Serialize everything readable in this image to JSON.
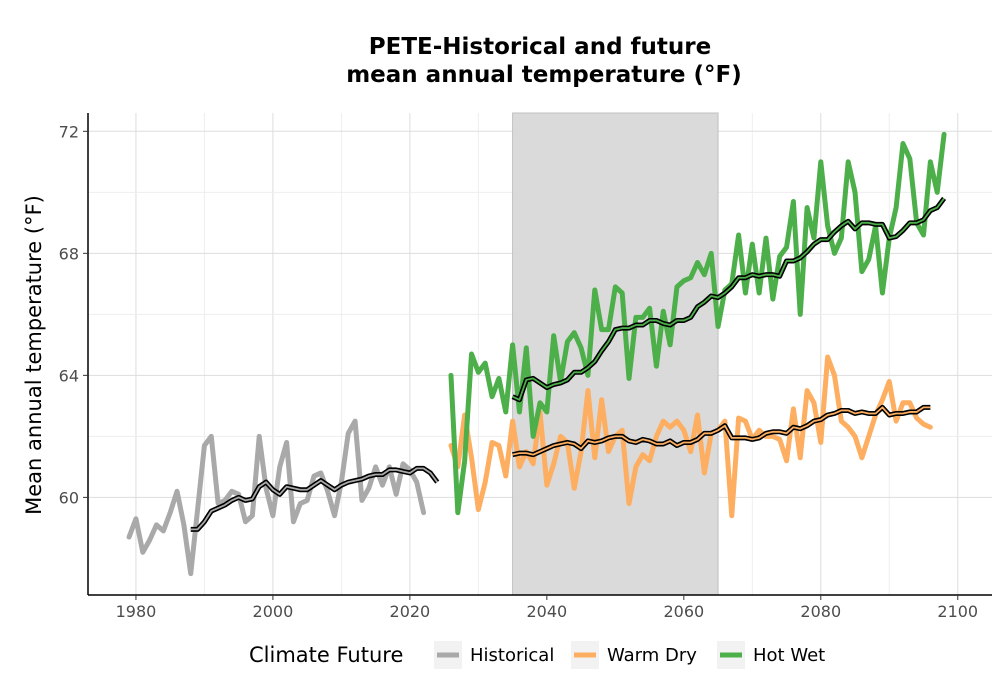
{
  "chart_data": {
    "type": "line",
    "title_line1": "PETE-Historical and future",
    "title_line2": "mean annual temperature (°F)",
    "xlabel": "",
    "ylabel": "Mean annual temperature (°F)",
    "xlim": [
      1973,
      2105
    ],
    "ylim": [
      56.8,
      72.6
    ],
    "x_ticks": [
      1980,
      2000,
      2020,
      2040,
      2060,
      2080,
      2100
    ],
    "y_ticks": [
      60,
      64,
      68,
      72
    ],
    "grid": true,
    "shaded_period": [
      2035,
      2065
    ],
    "legend": {
      "title": "Climate Future",
      "position": "bottom"
    },
    "series": [
      {
        "name": "Historical",
        "color": "#a9a9a9",
        "x_start": 1979,
        "values": [
          58.7,
          59.3,
          58.2,
          58.6,
          59.1,
          58.9,
          59.5,
          60.2,
          59.1,
          57.5,
          59.6,
          61.7,
          62.0,
          59.8,
          59.9,
          60.2,
          60.1,
          59.2,
          59.4,
          62.0,
          60.3,
          59.4,
          61.0,
          61.8,
          59.2,
          59.8,
          59.9,
          60.7,
          60.8,
          60.2,
          59.4,
          60.5,
          62.1,
          62.5,
          59.9,
          60.3,
          61.0,
          60.4,
          61.0,
          60.1,
          61.1,
          60.9,
          60.5,
          59.5
        ]
      },
      {
        "name": "Warm Dry",
        "color": "#fdae61",
        "x_start": 2026,
        "values": [
          61.7,
          61.0,
          62.7,
          61.3,
          59.6,
          60.5,
          61.8,
          61.7,
          60.7,
          62.5,
          61.0,
          61.5,
          61.1,
          62.8,
          60.4,
          61.1,
          62.0,
          61.8,
          60.3,
          61.5,
          63.5,
          61.3,
          63.2,
          61.5,
          62.0,
          62.2,
          59.8,
          61.0,
          61.4,
          61.2,
          62.0,
          62.5,
          62.3,
          62.5,
          62.2,
          61.5,
          62.7,
          60.8,
          62.1,
          62.2,
          62.5,
          59.4,
          62.6,
          62.5,
          61.9,
          62.2,
          62.0,
          62.0,
          61.9,
          61.2,
          62.9,
          61.3,
          63.5,
          63.1,
          61.8,
          64.6,
          64.0,
          62.5,
          62.3,
          62.0,
          61.3,
          62.0,
          62.7,
          63.2,
          63.8,
          62.5,
          63.1,
          63.1,
          62.6,
          62.4,
          62.3
        ]
      },
      {
        "name": "Hot Wet",
        "color": "#4daf4a",
        "x_start": 2026,
        "values": [
          64.0,
          59.5,
          61.2,
          64.7,
          64.1,
          64.4,
          63.3,
          63.9,
          62.8,
          65.0,
          62.8,
          64.9,
          62.0,
          63.1,
          62.8,
          65.3,
          63.8,
          65.1,
          65.4,
          64.9,
          64.0,
          66.8,
          65.5,
          65.5,
          66.9,
          66.7,
          63.9,
          65.9,
          65.9,
          66.2,
          64.3,
          66.1,
          65.0,
          66.9,
          67.1,
          67.2,
          67.7,
          67.3,
          68.0,
          65.6,
          66.8,
          67.0,
          68.6,
          66.7,
          68.3,
          66.7,
          68.5,
          66.5,
          67.9,
          68.2,
          69.7,
          66.0,
          69.5,
          68.5,
          71.0,
          68.9,
          68.0,
          68.5,
          71.0,
          70.0,
          67.4,
          67.8,
          68.9,
          66.7,
          68.5,
          69.5,
          71.6,
          71.1,
          69.0,
          68.6,
          71.0,
          70.0,
          71.9
        ]
      }
    ],
    "rolling_mean": {
      "name": "",
      "color": "#000000",
      "segments": [
        {
          "x_start": 1988,
          "values": [
            58.95,
            58.95,
            59.2,
            59.55,
            59.65,
            59.75,
            59.9,
            60.0,
            59.9,
            59.95,
            60.35,
            60.5,
            60.25,
            60.1,
            60.35,
            60.3,
            60.25,
            60.25,
            60.4,
            60.55,
            60.4,
            60.25,
            60.4,
            60.5,
            60.55,
            60.6,
            60.7,
            60.75,
            60.75,
            60.9,
            60.9,
            60.85,
            60.8,
            60.95,
            60.95,
            60.8,
            60.5
          ]
        },
        {
          "x_start": 2035,
          "values": [
            63.3,
            63.2,
            63.85,
            63.9,
            63.75,
            63.6,
            63.7,
            63.75,
            63.85,
            64.1,
            64.1,
            64.25,
            64.45,
            64.8,
            65.1,
            65.5,
            65.55,
            65.55,
            65.65,
            65.65,
            65.8,
            65.8,
            65.7,
            65.65,
            65.8,
            65.8,
            65.9,
            66.25,
            66.4,
            66.6,
            66.55,
            66.7,
            66.9,
            67.2,
            67.2,
            67.3,
            67.25,
            67.3,
            67.3,
            67.25,
            67.75,
            67.75,
            67.85,
            68.05,
            68.3,
            68.45,
            68.45,
            68.7,
            68.9,
            69.05,
            68.8,
            69.0,
            69.0,
            68.95,
            68.95,
            68.5,
            68.55,
            68.75,
            69.0,
            69.0,
            69.1,
            69.4,
            69.5,
            69.8
          ]
        },
        {
          "x_start": 2035,
          "values": [
            61.4,
            61.45,
            61.45,
            61.4,
            61.5,
            61.6,
            61.7,
            61.75,
            61.8,
            61.75,
            61.6,
            61.85,
            61.8,
            61.85,
            61.95,
            62.0,
            62.0,
            61.85,
            61.8,
            61.9,
            61.85,
            61.75,
            61.75,
            61.85,
            61.7,
            61.8,
            61.8,
            61.9,
            62.1,
            62.1,
            62.2,
            62.35,
            61.95,
            61.95,
            61.95,
            61.9,
            61.95,
            62.1,
            62.15,
            62.15,
            62.1,
            62.3,
            62.25,
            62.35,
            62.5,
            62.55,
            62.7,
            62.75,
            62.85,
            62.85,
            62.75,
            62.8,
            62.75,
            62.75,
            62.95,
            62.7,
            62.75,
            62.75,
            62.8,
            62.8,
            62.95,
            62.95
          ]
        }
      ]
    }
  }
}
